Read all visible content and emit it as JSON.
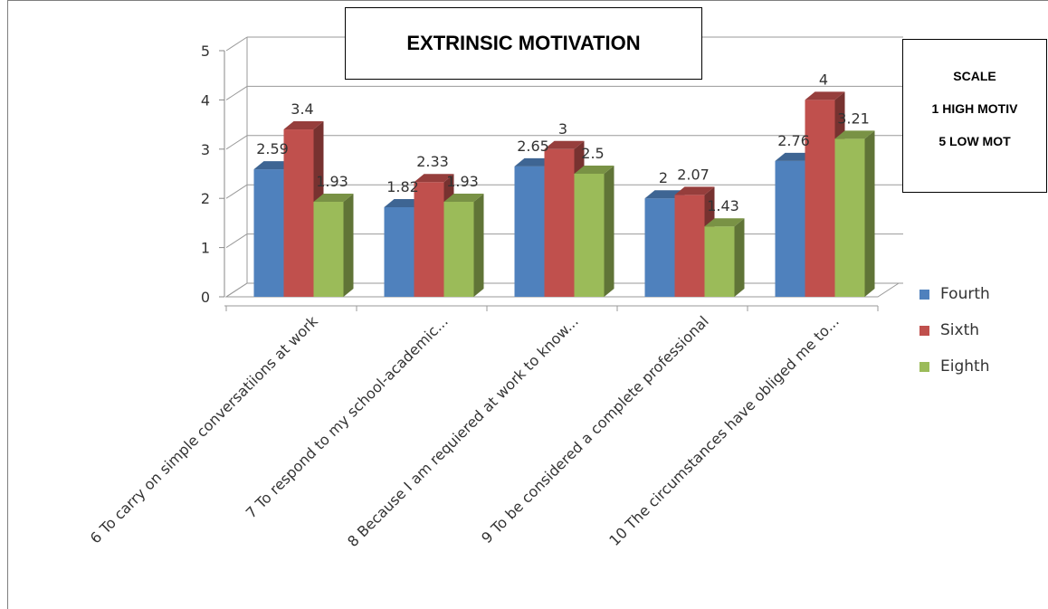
{
  "chart_data": {
    "type": "bar",
    "title": "EXTRINSIC MOTIVATION",
    "categories": [
      "6 To carry on simple conversatiions at work",
      "7 To respond to my school-academic...",
      "8 Because I am requiered at work to know...",
      "9 To be considered a complete professional",
      "10 The circumstances have obliged me to..."
    ],
    "series": [
      {
        "name": "Fourth",
        "color": "#4f81bd",
        "values": [
          2.59,
          1.82,
          2.65,
          2,
          2.76
        ]
      },
      {
        "name": "Sixth",
        "color": "#c0504d",
        "values": [
          3.4,
          2.33,
          3,
          2.07,
          4
        ]
      },
      {
        "name": "Eighth",
        "color": "#9bbb59",
        "values": [
          1.93,
          1.93,
          2.5,
          1.43,
          3.21
        ]
      }
    ],
    "ylim": [
      0,
      5
    ],
    "yticks": [
      0,
      1,
      2,
      3,
      4,
      5
    ],
    "grid": true,
    "legend_position": "right",
    "scale_note": [
      "SCALE",
      "1 HIGH MOTIV",
      "5 LOW MOT"
    ]
  }
}
